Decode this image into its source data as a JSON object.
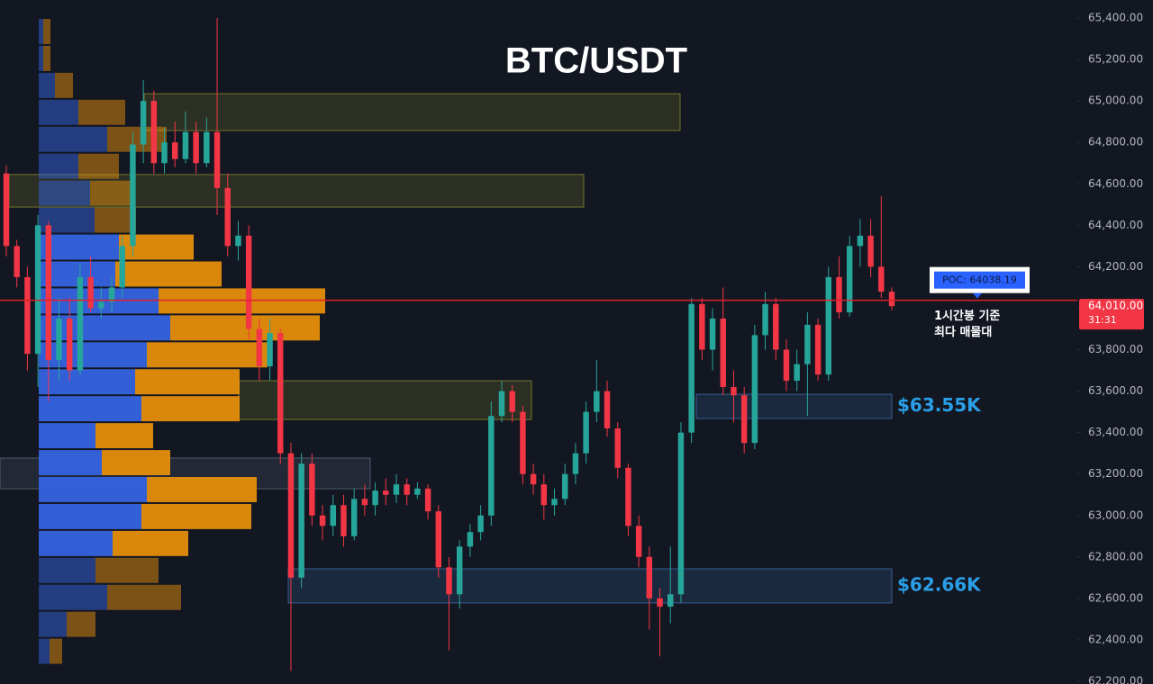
{
  "chart_data": {
    "type": "candlestick",
    "title": "BTC/USDT",
    "ylim": [
      62187,
      65487
    ],
    "yticks": [
      {
        "value": 62200,
        "label": "62,200.00"
      },
      {
        "value": 62400,
        "label": "62,400.00"
      },
      {
        "value": 62600,
        "label": "62,600.00"
      },
      {
        "value": 62800,
        "label": "62,800.00"
      },
      {
        "value": 63000,
        "label": "63,000.00"
      },
      {
        "value": 63200,
        "label": "63,200.00"
      },
      {
        "value": 63400,
        "label": "63,400.00"
      },
      {
        "value": 63600,
        "label": "63,600.00"
      },
      {
        "value": 63800,
        "label": "63,800.00"
      },
      {
        "value": 64000,
        "label": "64,000.00"
      },
      {
        "value": 64200,
        "label": "64,200.00"
      },
      {
        "value": 64400,
        "label": "64,400.00"
      },
      {
        "value": 64600,
        "label": "64,600.00"
      },
      {
        "value": 64800,
        "label": "64,800.00"
      },
      {
        "value": 65000,
        "label": "65,000.00"
      },
      {
        "value": 65200,
        "label": "65,200.00"
      },
      {
        "value": 65400,
        "label": "65,400.00"
      }
    ],
    "up_color": "#26a69a",
    "down_color": "#f23645",
    "ohlc": [
      [
        64650,
        64690,
        64250,
        64300
      ],
      [
        64300,
        64330,
        64100,
        64150
      ],
      [
        64150,
        64200,
        63700,
        63780
      ],
      [
        63780,
        64450,
        63620,
        64400
      ],
      [
        64400,
        64420,
        63550,
        63750
      ],
      [
        63750,
        64050,
        63650,
        63950
      ],
      [
        63950,
        64050,
        63650,
        63700
      ],
      [
        63700,
        64220,
        63680,
        64150
      ],
      [
        64150,
        64250,
        63980,
        64000
      ],
      [
        64000,
        64100,
        63950,
        64030
      ],
      [
        64030,
        64150,
        63980,
        64100
      ],
      [
        64100,
        64350,
        64050,
        64300
      ],
      [
        64300,
        64850,
        64250,
        64790
      ],
      [
        64790,
        65100,
        64700,
        65000
      ],
      [
        65000,
        65050,
        64650,
        64700
      ],
      [
        64700,
        64870,
        64650,
        64800
      ],
      [
        64800,
        64900,
        64680,
        64720
      ],
      [
        64720,
        64950,
        64700,
        64850
      ],
      [
        64850,
        64900,
        64650,
        64700
      ],
      [
        64700,
        64920,
        64680,
        64850
      ],
      [
        64850,
        65400,
        64450,
        64580
      ],
      [
        64580,
        64650,
        64250,
        64300
      ],
      [
        64300,
        64420,
        64230,
        64350
      ],
      [
        64350,
        64400,
        63850,
        63900
      ],
      [
        63900,
        63950,
        63650,
        63720
      ],
      [
        63720,
        63950,
        63650,
        63880
      ],
      [
        63880,
        63900,
        63250,
        63300
      ],
      [
        63300,
        63350,
        62250,
        62700
      ],
      [
        62700,
        63300,
        62650,
        63250
      ],
      [
        63250,
        63300,
        62950,
        63000
      ],
      [
        63000,
        63050,
        62880,
        62950
      ],
      [
        62950,
        63100,
        62900,
        63050
      ],
      [
        63050,
        63100,
        62850,
        62900
      ],
      [
        62900,
        63130,
        62880,
        63080
      ],
      [
        63080,
        63150,
        63000,
        63050
      ],
      [
        63050,
        63160,
        63000,
        63120
      ],
      [
        63120,
        63180,
        63050,
        63100
      ],
      [
        63100,
        63200,
        63060,
        63150
      ],
      [
        63150,
        63180,
        63050,
        63100
      ],
      [
        63100,
        63160,
        63080,
        63130
      ],
      [
        63130,
        63150,
        62980,
        63020
      ],
      [
        63020,
        63050,
        62700,
        62750
      ],
      [
        62750,
        62800,
        62350,
        62620
      ],
      [
        62620,
        62880,
        62550,
        62850
      ],
      [
        62850,
        62960,
        62800,
        62920
      ],
      [
        62920,
        63050,
        62880,
        63000
      ],
      [
        63000,
        63550,
        62950,
        63480
      ],
      [
        63480,
        63650,
        63450,
        63600
      ],
      [
        63600,
        63630,
        63450,
        63500
      ],
      [
        63500,
        63530,
        63150,
        63200
      ],
      [
        63200,
        63250,
        63100,
        63150
      ],
      [
        63150,
        63200,
        62980,
        63050
      ],
      [
        63050,
        63130,
        63000,
        63080
      ],
      [
        63080,
        63250,
        63050,
        63200
      ],
      [
        63200,
        63350,
        63150,
        63300
      ],
      [
        63300,
        63550,
        63250,
        63500
      ],
      [
        63500,
        63750,
        63450,
        63600
      ],
      [
        63600,
        63650,
        63380,
        63420
      ],
      [
        63420,
        63450,
        63180,
        63230
      ],
      [
        63230,
        63250,
        62900,
        62950
      ],
      [
        62950,
        63000,
        62750,
        62800
      ],
      [
        62800,
        62850,
        62450,
        62600
      ],
      [
        62600,
        62650,
        62320,
        62560
      ],
      [
        62560,
        62850,
        62480,
        62620
      ],
      [
        62620,
        63450,
        62580,
        63400
      ],
      [
        63400,
        64050,
        63350,
        64020
      ],
      [
        64020,
        64050,
        63750,
        63800
      ],
      [
        63800,
        64000,
        63700,
        63950
      ],
      [
        63950,
        64100,
        63580,
        63620
      ],
      [
        63620,
        63700,
        63450,
        63580
      ],
      [
        63580,
        63620,
        63300,
        63350
      ],
      [
        63350,
        63920,
        63320,
        63870
      ],
      [
        63870,
        64080,
        63800,
        64020
      ],
      [
        64020,
        64050,
        63750,
        63800
      ],
      [
        63800,
        63850,
        63600,
        63650
      ],
      [
        63650,
        63800,
        63600,
        63730
      ],
      [
        63730,
        63980,
        63480,
        63920
      ],
      [
        63920,
        63950,
        63650,
        63680
      ],
      [
        63680,
        64200,
        63650,
        64150
      ],
      [
        64150,
        64250,
        63950,
        63980
      ],
      [
        63980,
        64350,
        63960,
        64300
      ],
      [
        64300,
        64430,
        64200,
        64350
      ],
      [
        64350,
        64430,
        64150,
        64200
      ],
      [
        64200,
        64540,
        64050,
        64080
      ],
      [
        64080,
        64100,
        63990,
        64010
      ]
    ],
    "volume_profile": {
      "levels": [
        65335,
        65205,
        65075,
        64945,
        64815,
        64685,
        64555,
        64425,
        64295,
        64165,
        64035,
        63905,
        63775,
        63645,
        63515,
        63385,
        63255,
        63125,
        62995,
        62865,
        62735,
        62605,
        62475,
        62345
      ],
      "buy": [
        5,
        5,
        18,
        44,
        76,
        44,
        57,
        62,
        89,
        85,
        133,
        146,
        120,
        107,
        114,
        63,
        70,
        120,
        114,
        82,
        63,
        76,
        31,
        12
      ],
      "sell": [
        8,
        8,
        20,
        52,
        66,
        45,
        45,
        46,
        83,
        118,
        185,
        166,
        134,
        116,
        109,
        64,
        76,
        122,
        122,
        84,
        70,
        82,
        32,
        14
      ],
      "buy_color": "#3563e0",
      "sell_color": "#e58e0b",
      "value_area": [
        62800,
        64360
      ]
    },
    "zones": [
      {
        "range": [
          64857,
          65035
        ],
        "color": "#8a8a2a"
      },
      {
        "range": [
          64488,
          64645
        ],
        "color": "#8a8a2a"
      },
      {
        "range": [
          63463,
          63650
        ],
        "color": "#8a8a2a"
      },
      {
        "range": [
          63129,
          63277
        ],
        "color": "#5a6a7a"
      },
      {
        "range": [
          63468,
          63585
        ],
        "color": "#3d6ea8",
        "label": "$63.55K"
      },
      {
        "range": [
          62578,
          62743
        ],
        "color": "#3d6ea8",
        "label": "$62.66K"
      }
    ],
    "poc": {
      "value": 64038.19,
      "label": "POC: 64038.19"
    },
    "last_price": {
      "value": 64010,
      "label": "64,010.00"
    },
    "countdown": "31:31",
    "annotation": [
      "1시간봉 기준",
      "최다 매물대"
    ]
  }
}
